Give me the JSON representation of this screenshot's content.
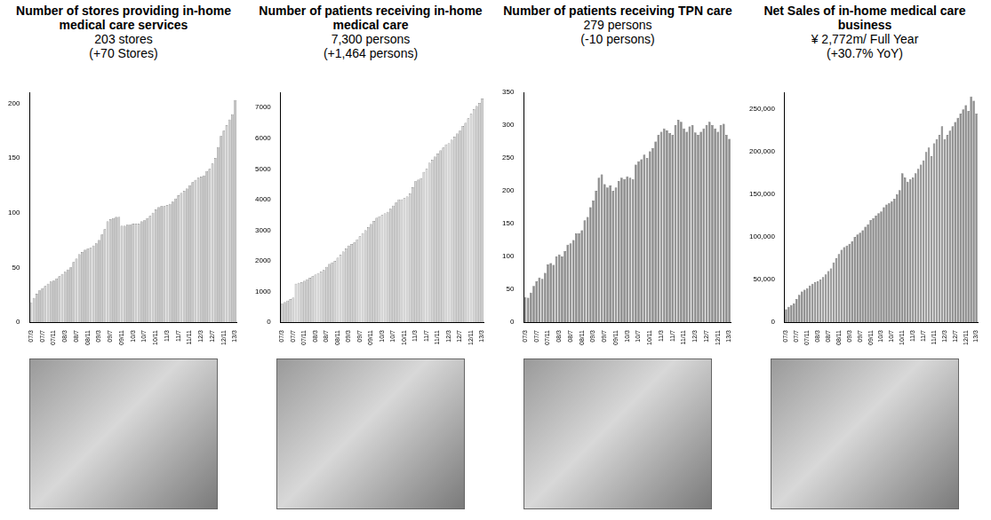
{
  "chart_data": [
    {
      "type": "bar",
      "title": "Number of stores providing in-home medical care services",
      "subtitle": "203 stores",
      "annotation": "(+70 Stores)",
      "categories": [
        "07/3",
        null,
        null,
        null,
        "07/7",
        null,
        null,
        null,
        "07/11",
        null,
        null,
        null,
        "08/3",
        null,
        null,
        null,
        "08/7",
        null,
        null,
        null,
        "08/11",
        null,
        null,
        null,
        "09/3",
        null,
        null,
        null,
        "09/7",
        null,
        null,
        null,
        "09/11",
        null,
        null,
        null,
        "10/3",
        null,
        null,
        null,
        "10/7",
        null,
        null,
        null,
        "10/11",
        null,
        null,
        null,
        "11/3",
        null,
        null,
        null,
        "11/7",
        null,
        null,
        null,
        "11/11",
        null,
        null,
        null,
        "12/3",
        null,
        null,
        null,
        "12/7",
        null,
        null,
        null,
        "12/11",
        null,
        null,
        null,
        "13/3"
      ],
      "values": [
        18,
        22,
        26,
        29,
        31,
        33,
        35,
        37,
        38,
        40,
        42,
        44,
        46,
        48,
        50,
        55,
        58,
        62,
        64,
        66,
        67,
        68,
        70,
        72,
        75,
        80,
        85,
        92,
        94,
        95,
        96,
        96,
        88,
        88,
        89,
        89,
        90,
        90,
        90,
        92,
        93,
        95,
        97,
        100,
        103,
        105,
        106,
        106,
        107,
        108,
        110,
        113,
        116,
        118,
        120,
        122,
        125,
        128,
        130,
        132,
        133,
        134,
        138,
        140,
        145,
        150,
        160,
        170,
        175,
        180,
        185,
        190,
        203
      ],
      "color": "#c8c8c8",
      "ylim": [
        0,
        210
      ],
      "yticks": [
        0,
        50,
        100,
        150,
        200
      ],
      "grid": false
    },
    {
      "type": "bar",
      "title": "Number of patients receiving in-home medical care",
      "subtitle": "7,300 persons",
      "annotation": "(+1,464 persons)",
      "categories": [
        "07/3",
        null,
        null,
        null,
        "07/7",
        null,
        null,
        null,
        "07/11",
        null,
        null,
        null,
        "08/3",
        null,
        null,
        null,
        "08/7",
        null,
        null,
        null,
        "08/11",
        null,
        null,
        null,
        "09/3",
        null,
        null,
        null,
        "09/7",
        null,
        null,
        null,
        "09/11",
        null,
        null,
        null,
        "10/3",
        null,
        null,
        null,
        "10/7",
        null,
        null,
        null,
        "10/11",
        null,
        null,
        null,
        "11/3",
        null,
        null,
        null,
        "11/7",
        null,
        null,
        null,
        "11/11",
        null,
        null,
        null,
        "12/3",
        null,
        null,
        null,
        "12/7",
        null,
        null,
        null,
        "12/11",
        null,
        null,
        null,
        "13/3"
      ],
      "values": [
        600,
        650,
        700,
        750,
        800,
        1250,
        1280,
        1300,
        1350,
        1400,
        1450,
        1500,
        1550,
        1600,
        1650,
        1700,
        1800,
        1900,
        1950,
        2000,
        2100,
        2200,
        2300,
        2400,
        2500,
        2550,
        2600,
        2700,
        2800,
        2900,
        3000,
        3100,
        3200,
        3300,
        3400,
        3450,
        3500,
        3550,
        3600,
        3700,
        3800,
        3900,
        4000,
        4000,
        4050,
        4100,
        4200,
        4400,
        4600,
        4650,
        4700,
        4900,
        5000,
        5200,
        5300,
        5400,
        5500,
        5600,
        5700,
        5800,
        5836,
        5950,
        6050,
        6150,
        6250,
        6400,
        6500,
        6650,
        6800,
        6950,
        7050,
        7150,
        7300
      ],
      "color": "#d4d4d4",
      "ylim": [
        0,
        7500
      ],
      "yticks": [
        0,
        1000,
        2000,
        3000,
        4000,
        5000,
        6000,
        7000
      ],
      "grid": false
    },
    {
      "type": "bar",
      "title": "Number of patients receiving TPN care",
      "subtitle": "279 persons",
      "annotation": "(-10 persons)",
      "categories": [
        "07/3",
        null,
        null,
        null,
        "07/7",
        null,
        null,
        null,
        "07/11",
        null,
        null,
        null,
        "08/3",
        null,
        null,
        null,
        "08/7",
        null,
        null,
        null,
        "08/11",
        null,
        null,
        null,
        "09/3",
        null,
        null,
        null,
        "09/7",
        null,
        null,
        null,
        "09/11",
        null,
        null,
        null,
        "10/3",
        null,
        null,
        null,
        "10/7",
        null,
        null,
        null,
        "10/11",
        null,
        null,
        null,
        "11/3",
        null,
        null,
        null,
        "11/7",
        null,
        null,
        null,
        "11/11",
        null,
        null,
        null,
        "12/3",
        null,
        null,
        null,
        "12/7",
        null,
        null,
        null,
        "12/11",
        null,
        null,
        null,
        "13/3"
      ],
      "values": [
        38,
        37,
        45,
        55,
        62,
        68,
        66,
        75,
        88,
        90,
        87,
        100,
        103,
        100,
        108,
        118,
        120,
        125,
        135,
        135,
        140,
        155,
        160,
        175,
        185,
        200,
        220,
        225,
        210,
        205,
        208,
        200,
        205,
        215,
        220,
        218,
        222,
        220,
        218,
        240,
        245,
        248,
        255,
        250,
        260,
        265,
        275,
        285,
        290,
        295,
        292,
        288,
        285,
        300,
        308,
        305,
        295,
        290,
        298,
        300,
        289,
        285,
        290,
        295,
        300,
        305,
        300,
        295,
        290,
        300,
        302,
        285,
        279
      ],
      "color": "#8c8c8c",
      "ylim": [
        0,
        350
      ],
      "yticks": [
        0,
        50,
        100,
        150,
        200,
        250,
        300,
        350
      ],
      "grid": false
    },
    {
      "type": "bar",
      "title": "Net Sales of in-home medical care business",
      "subtitle": "¥ 2,772m/ Full Year",
      "annotation": "(+30.7% YoY)",
      "categories": [
        "07/3",
        null,
        null,
        null,
        "07/7",
        null,
        null,
        null,
        "07/11",
        null,
        null,
        null,
        "08/3",
        null,
        null,
        null,
        "08/7",
        null,
        null,
        null,
        "08/11",
        null,
        null,
        null,
        "09/3",
        null,
        null,
        null,
        "09/7",
        null,
        null,
        null,
        "09/11",
        null,
        null,
        null,
        "10/3",
        null,
        null,
        null,
        "10/7",
        null,
        null,
        null,
        "10/11",
        null,
        null,
        null,
        "11/3",
        null,
        null,
        null,
        "11/7",
        null,
        null,
        null,
        "11/11",
        null,
        null,
        null,
        "12/3",
        null,
        null,
        null,
        "12/7",
        null,
        null,
        null,
        "12/11",
        null,
        null,
        null,
        "13/3"
      ],
      "values": [
        15000,
        18000,
        20000,
        22000,
        27000,
        32000,
        36000,
        38000,
        40000,
        43000,
        45000,
        47000,
        48000,
        50000,
        53000,
        56000,
        60000,
        63000,
        70000,
        75000,
        80000,
        85000,
        88000,
        90000,
        92000,
        95000,
        100000,
        103000,
        105000,
        108000,
        112000,
        115000,
        120000,
        122000,
        125000,
        128000,
        130000,
        135000,
        138000,
        140000,
        142000,
        145000,
        150000,
        155000,
        175000,
        170000,
        165000,
        168000,
        170000,
        175000,
        180000,
        185000,
        190000,
        200000,
        205000,
        195000,
        210000,
        215000,
        220000,
        230000,
        215000,
        220000,
        225000,
        230000,
        235000,
        240000,
        245000,
        250000,
        255000,
        248000,
        265000,
        260000,
        245000
      ],
      "color": "#8c8c8c",
      "ylim": [
        0,
        270000
      ],
      "yticks": [
        0,
        {
          "value": 50000,
          "label": "50,000"
        },
        {
          "value": 100000,
          "label": "100,000"
        },
        {
          "value": 150000,
          "label": "150,000"
        },
        {
          "value": 200000,
          "label": "200,000"
        },
        {
          "value": 250000,
          "label": "250,000"
        }
      ],
      "grid": false
    }
  ]
}
